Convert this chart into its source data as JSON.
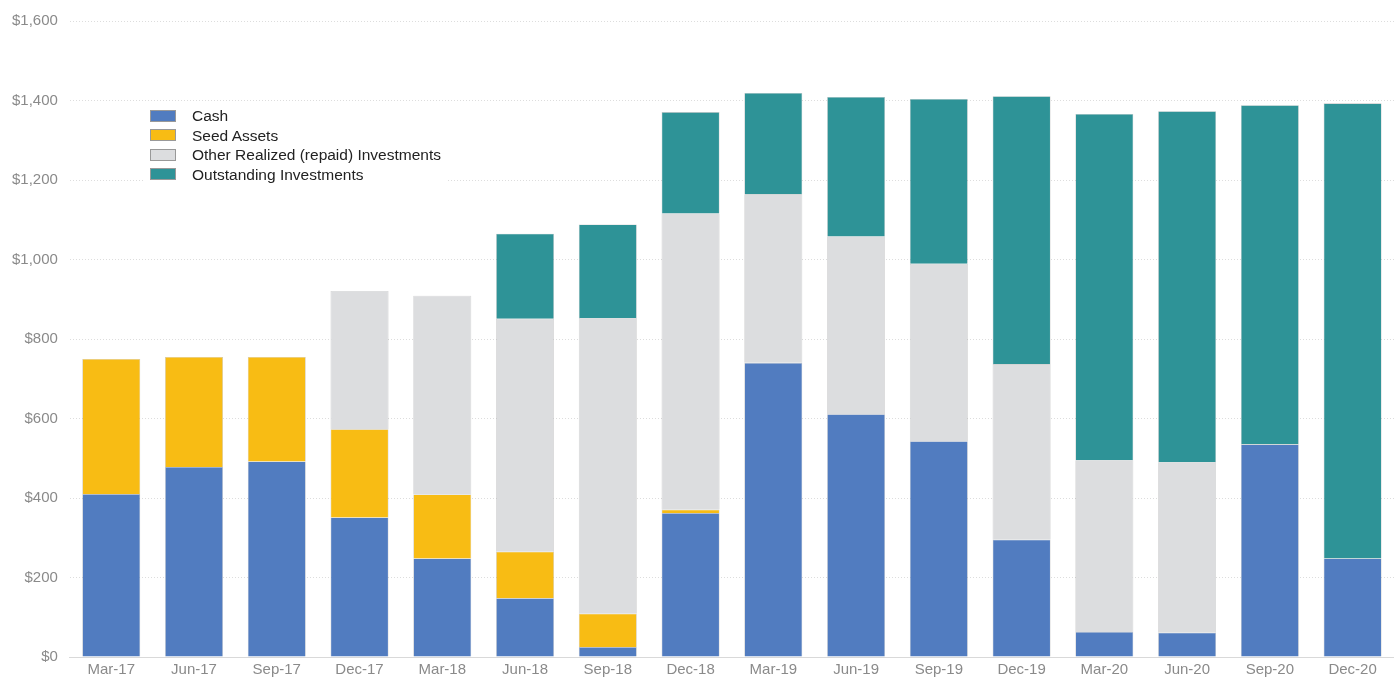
{
  "chart_data": {
    "type": "bar",
    "stacked": true,
    "categories": [
      "Mar-17",
      "Jun-17",
      "Sep-17",
      "Dec-17",
      "Mar-18",
      "Jun-18",
      "Sep-18",
      "Dec-18",
      "Mar-19",
      "Jun-19",
      "Sep-19",
      "Dec-19",
      "Mar-20",
      "Jun-20",
      "Sep-20",
      "Dec-20"
    ],
    "series": [
      {
        "name": "Cash",
        "color": "#517cc0",
        "values": [
          410,
          478,
          492,
          351,
          248,
          148,
          25,
          362,
          740,
          611,
          543,
          295,
          63,
          61,
          535,
          248
        ]
      },
      {
        "name": "Seed Assets",
        "color": "#f8bc14",
        "values": [
          340,
          277,
          263,
          222,
          161,
          117,
          84,
          9,
          null,
          null,
          null,
          null,
          null,
          null,
          null,
          null
        ]
      },
      {
        "name": "Other Realized (repaid) Investments",
        "color": "#dcdddf",
        "values": [
          null,
          null,
          null,
          348,
          500,
          586,
          744,
          745,
          424,
          447,
          446,
          442,
          432,
          429,
          null,
          null
        ]
      },
      {
        "name": "Outstanding Investments",
        "color": "#2e9397",
        "values": [
          null,
          null,
          null,
          null,
          null,
          214,
          235,
          255,
          255,
          351,
          415,
          674,
          871,
          883,
          853,
          1145
        ]
      }
    ],
    "ylim": [
      0,
      1600
    ],
    "yticks": [
      {
        "value": 0,
        "label": "$0"
      },
      {
        "value": 200,
        "label": "$200"
      },
      {
        "value": 400,
        "label": "$400"
      },
      {
        "value": 600,
        "label": "$600"
      },
      {
        "value": 800,
        "label": "$800"
      },
      {
        "value": 1000,
        "label": "$1,000"
      },
      {
        "value": 1200,
        "label": "$1,200"
      },
      {
        "value": 1400,
        "label": "$1,400"
      },
      {
        "value": 1600,
        "label": "$1,600"
      }
    ],
    "grid": "y",
    "legend": "top left"
  }
}
